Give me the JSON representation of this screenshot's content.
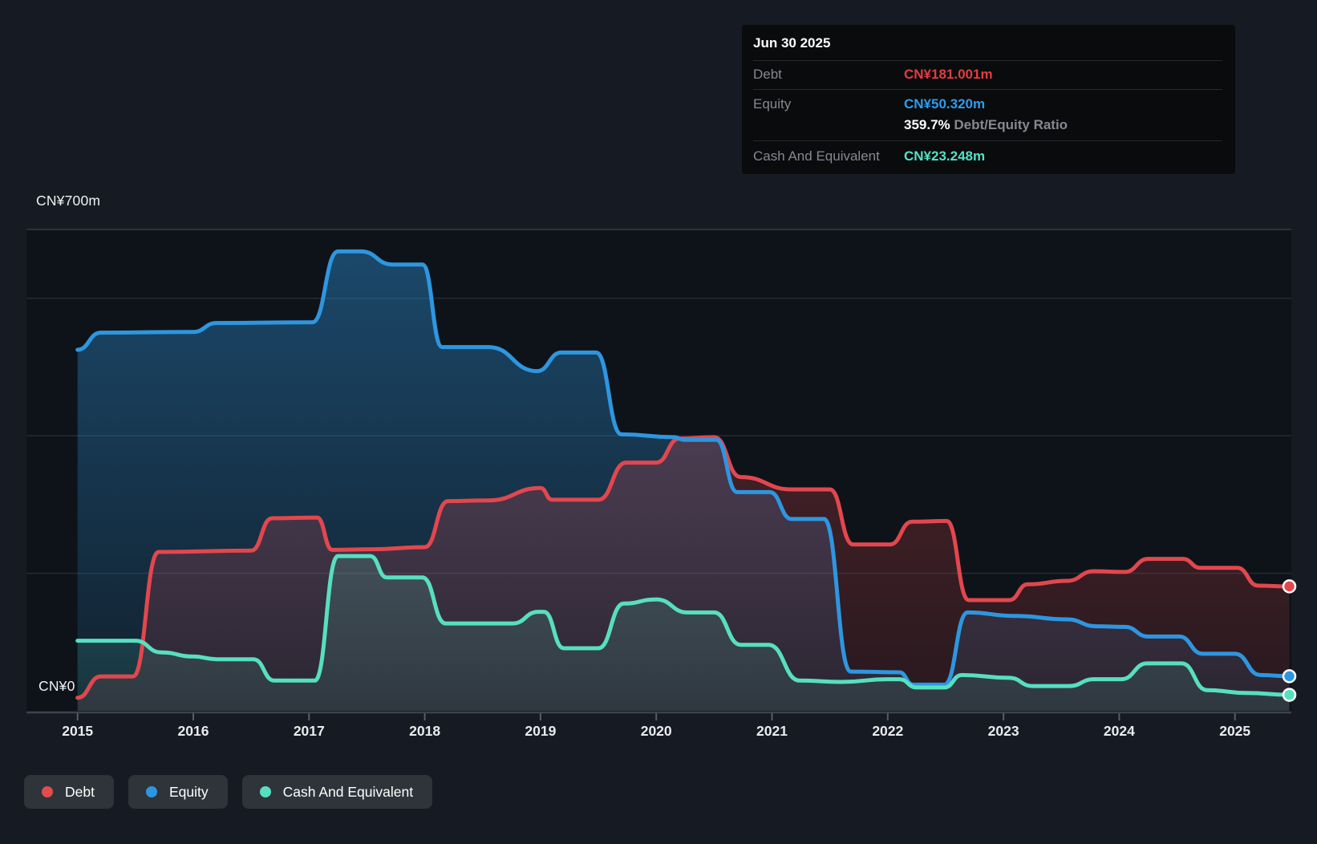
{
  "page": {
    "background": "#161b23",
    "plot_background": "#0e1319"
  },
  "colors": {
    "debt": "#e2474d",
    "equity": "#2e96e0",
    "cash": "#57dfc0",
    "tooltip_debt": "#e33c40",
    "tooltip_equity": "#2d9cec",
    "tooltip_cash": "#52e2c4",
    "grid": "#252b34",
    "grid_top": "#2c323c",
    "axis_line": "#3c434d",
    "tick": "#565d66"
  },
  "tooltip": {
    "date": "Jun 30 2025",
    "debt": {
      "label": "Debt",
      "value": "CN¥181.001m"
    },
    "equity": {
      "label": "Equity",
      "value": "CN¥50.320m"
    },
    "ratio": {
      "value": "359.7%",
      "label": " Debt/Equity Ratio"
    },
    "cash": {
      "label": "Cash And Equivalent",
      "value": "CN¥23.248m"
    }
  },
  "y_axis": {
    "top": "CN¥700m",
    "zero": "CN¥0"
  },
  "legend": {
    "items": [
      {
        "label": "Debt",
        "color": "#e34c4c"
      },
      {
        "label": "Equity",
        "color": "#2d96e3"
      },
      {
        "label": "Cash And Equivalent",
        "color": "#57dfc0"
      }
    ]
  },
  "chart_data": {
    "type": "area",
    "x_unit": "year",
    "x_range": [
      2015.0,
      2025.47
    ],
    "x_ticks": [
      2015,
      2016,
      2017,
      2018,
      2019,
      2020,
      2021,
      2022,
      2023,
      2024,
      2025
    ],
    "ylabel": "CN¥ millions",
    "ylim": [
      0,
      700
    ],
    "y_gridlines": [
      700,
      600,
      400,
      200
    ],
    "legend_position": "bottom-left",
    "grid": true,
    "series": [
      {
        "name": "Equity",
        "color": "#2e96e0",
        "end_value_label": "CN¥50.320m",
        "points": [
          [
            2015.0,
            525
          ],
          [
            2015.2,
            550
          ],
          [
            2016.0,
            551
          ],
          [
            2016.2,
            564
          ],
          [
            2017.03,
            565
          ],
          [
            2017.25,
            668
          ],
          [
            2017.45,
            668
          ],
          [
            2017.72,
            649
          ],
          [
            2017.98,
            649
          ],
          [
            2018.15,
            529
          ],
          [
            2018.55,
            529
          ],
          [
            2018.97,
            494
          ],
          [
            2019.18,
            521
          ],
          [
            2019.48,
            521
          ],
          [
            2019.7,
            402
          ],
          [
            2020.15,
            398
          ],
          [
            2020.25,
            394
          ],
          [
            2020.52,
            394
          ],
          [
            2020.7,
            318
          ],
          [
            2020.98,
            318
          ],
          [
            2021.17,
            279
          ],
          [
            2021.45,
            279
          ],
          [
            2021.68,
            57
          ],
          [
            2022.1,
            56
          ],
          [
            2022.22,
            38
          ],
          [
            2022.49,
            38
          ],
          [
            2022.69,
            143
          ],
          [
            2023.1,
            138
          ],
          [
            2023.55,
            133
          ],
          [
            2023.8,
            123
          ],
          [
            2024.05,
            122
          ],
          [
            2024.25,
            108
          ],
          [
            2024.52,
            108
          ],
          [
            2024.72,
            83
          ],
          [
            2025.0,
            83
          ],
          [
            2025.22,
            52
          ],
          [
            2025.47,
            50.32
          ]
        ]
      },
      {
        "name": "Debt",
        "color": "#e2474d",
        "end_value_label": "CN¥181.001m",
        "points": [
          [
            2015.0,
            19
          ],
          [
            2015.2,
            50
          ],
          [
            2015.48,
            50
          ],
          [
            2015.7,
            231
          ],
          [
            2016.5,
            233
          ],
          [
            2016.68,
            280
          ],
          [
            2017.07,
            281
          ],
          [
            2017.2,
            234
          ],
          [
            2017.55,
            235
          ],
          [
            2018.0,
            238
          ],
          [
            2018.2,
            305
          ],
          [
            2018.55,
            306
          ],
          [
            2019.0,
            324
          ],
          [
            2019.1,
            307
          ],
          [
            2019.5,
            307
          ],
          [
            2019.74,
            361
          ],
          [
            2020.0,
            361
          ],
          [
            2020.2,
            396
          ],
          [
            2020.5,
            398
          ],
          [
            2020.73,
            340
          ],
          [
            2021.17,
            322
          ],
          [
            2021.5,
            322
          ],
          [
            2021.7,
            242
          ],
          [
            2022.02,
            242
          ],
          [
            2022.21,
            275
          ],
          [
            2022.51,
            276
          ],
          [
            2022.7,
            161
          ],
          [
            2023.05,
            161
          ],
          [
            2023.21,
            184
          ],
          [
            2023.55,
            189
          ],
          [
            2023.78,
            203
          ],
          [
            2024.05,
            202
          ],
          [
            2024.25,
            221
          ],
          [
            2024.55,
            221
          ],
          [
            2024.7,
            208
          ],
          [
            2025.02,
            208
          ],
          [
            2025.2,
            182
          ],
          [
            2025.47,
            181.0
          ]
        ]
      },
      {
        "name": "Cash And Equivalent",
        "color": "#57dfc0",
        "end_value_label": "CN¥23.248m",
        "points": [
          [
            2015.0,
            102
          ],
          [
            2015.5,
            102
          ],
          [
            2015.72,
            85
          ],
          [
            2016.0,
            79
          ],
          [
            2016.2,
            75
          ],
          [
            2016.52,
            75
          ],
          [
            2016.7,
            44
          ],
          [
            2017.05,
            44
          ],
          [
            2017.25,
            225
          ],
          [
            2017.53,
            225
          ],
          [
            2017.67,
            194
          ],
          [
            2017.98,
            194
          ],
          [
            2018.18,
            127
          ],
          [
            2018.76,
            127
          ],
          [
            2018.98,
            144
          ],
          [
            2019.03,
            144
          ],
          [
            2019.2,
            91
          ],
          [
            2019.5,
            91
          ],
          [
            2019.72,
            156
          ],
          [
            2020.0,
            162
          ],
          [
            2020.27,
            143
          ],
          [
            2020.5,
            143
          ],
          [
            2020.73,
            96
          ],
          [
            2020.97,
            96
          ],
          [
            2021.24,
            44
          ],
          [
            2021.6,
            42
          ],
          [
            2022.0,
            46
          ],
          [
            2022.1,
            46
          ],
          [
            2022.25,
            34
          ],
          [
            2022.49,
            34
          ],
          [
            2022.64,
            52
          ],
          [
            2023.05,
            48
          ],
          [
            2023.25,
            36
          ],
          [
            2023.57,
            36
          ],
          [
            2023.78,
            46
          ],
          [
            2024.02,
            46
          ],
          [
            2024.24,
            69
          ],
          [
            2024.54,
            69
          ],
          [
            2024.76,
            30
          ],
          [
            2025.1,
            26
          ],
          [
            2025.47,
            23.25
          ]
        ]
      }
    ]
  }
}
